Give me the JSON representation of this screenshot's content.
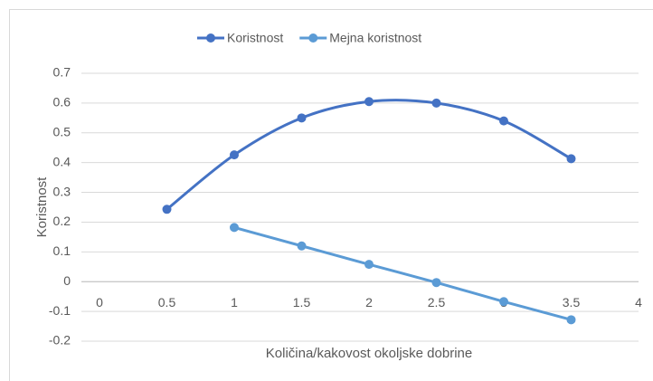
{
  "chart_data": {
    "type": "scatter",
    "smooth": true,
    "x_label": "Količina/kakovost okoljske dobrine",
    "y_label": "Koristnost",
    "x": [
      0.5,
      1,
      1.5,
      2,
      2.5,
      3,
      3.5
    ],
    "series": [
      {
        "name": "Koristnost",
        "color": "#4472c4",
        "values": [
          0.243,
          0.426,
          0.55,
          0.605,
          0.6,
          0.54,
          0.413
        ]
      },
      {
        "name": "Mejna koristnost",
        "color": "#5b9bd5",
        "values": [
          null,
          0.182,
          0.12,
          0.058,
          -0.003,
          -0.067,
          -0.128
        ]
      }
    ],
    "xlim": [
      0,
      4
    ],
    "xticks": [
      0,
      0.5,
      1,
      1.5,
      2,
      2.5,
      3,
      3.5,
      4
    ],
    "ylim": [
      -0.2,
      0.7
    ],
    "yticks": [
      -0.2,
      -0.1,
      0,
      0.1,
      0.2,
      0.3,
      0.4,
      0.5,
      0.6,
      0.7
    ],
    "grid": true,
    "legend": "top"
  }
}
